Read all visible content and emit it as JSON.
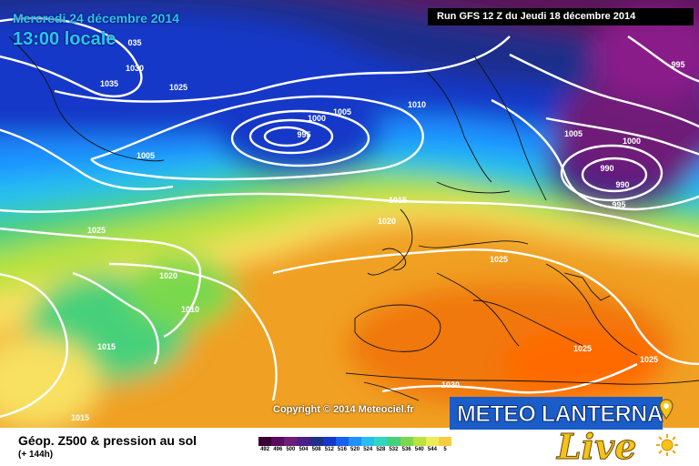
{
  "map": {
    "date_line": "Mercredi 24 décembre 2014",
    "time_line": "13:00 locale",
    "run_info": "Run GFS 12 Z du Jeudi 18 décembre 2014",
    "copyright": "Copyright © 2014 Meteociel.fr",
    "isobar_labels": [
      "035",
      "1030",
      "1035",
      "1025",
      "1000",
      "1005",
      "995",
      "1010",
      "1005",
      "1015",
      "1020",
      "1025",
      "1020",
      "1010",
      "1015",
      "1015",
      "1025",
      "1030",
      "1025",
      "1025",
      "995",
      "1005",
      "1000",
      "990",
      "990",
      "995"
    ]
  },
  "footer": {
    "title": "Géop. Z500 & pression au sol",
    "subtitle": "(+ 144h)",
    "legend_values": [
      "492",
      "496",
      "500",
      "504",
      "508",
      "512",
      "516",
      "520",
      "524",
      "528",
      "532",
      "536",
      "540",
      "544",
      "5"
    ],
    "legend_colors": [
      "#3a0033",
      "#5c0a5c",
      "#6e1e78",
      "#4a2088",
      "#1f2f8a",
      "#1538c8",
      "#1860f0",
      "#1e90ff",
      "#25c0f0",
      "#30d6c0",
      "#46d07a",
      "#7ad84e",
      "#b8e23e",
      "#ecec5a",
      "#f8cc40"
    ]
  },
  "logo": {
    "title": "METEO LANTERNA",
    "script": "Live"
  },
  "colors": {
    "accent_cyan": "#29c4ff",
    "logo_blue": "#1a5cc8",
    "logo_gold": "#f5c319"
  }
}
